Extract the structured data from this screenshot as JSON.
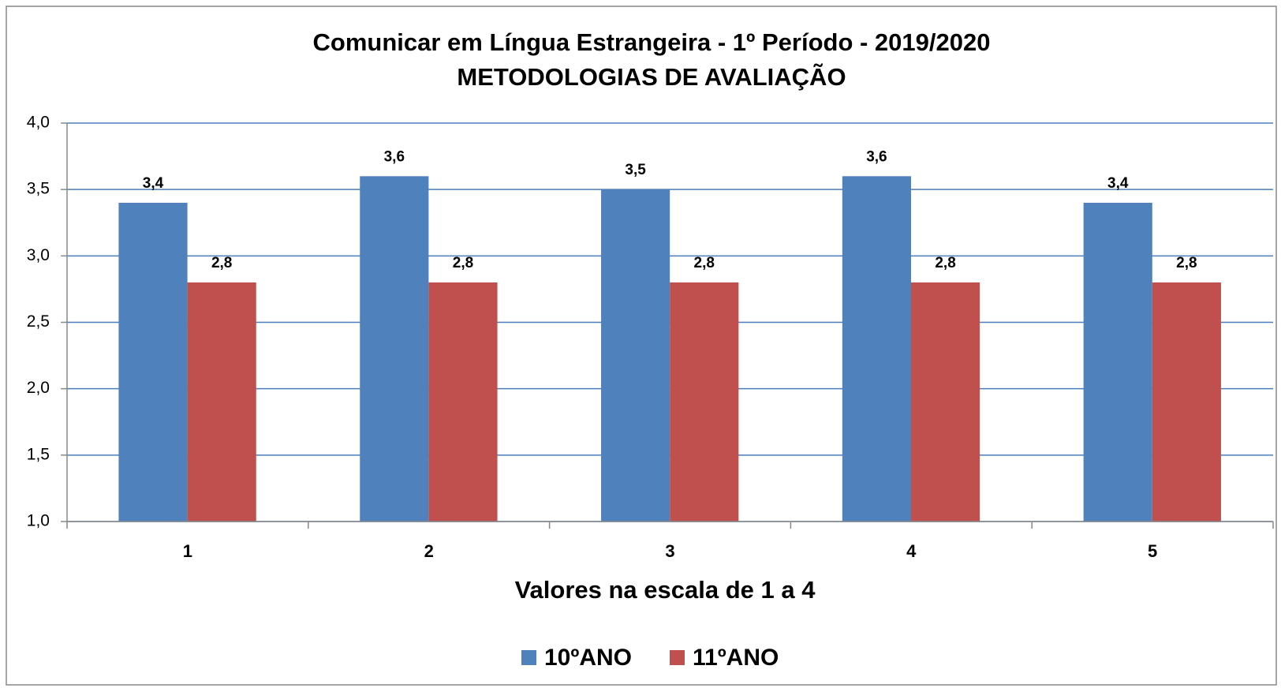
{
  "chart_data": {
    "type": "bar",
    "title": "Comunicar em Língua Estrangeira - 1º Período - 2019/2020",
    "subtitle": "METODOLOGIAS DE AVALIAÇÃO",
    "x_label": "Valores na escala de 1 a 4",
    "categories": [
      "1",
      "2",
      "3",
      "4",
      "5"
    ],
    "series": [
      {
        "name": "10ºANO",
        "color": "#4f81bd",
        "values": [
          3.4,
          3.6,
          3.5,
          3.6,
          3.4
        ],
        "value_labels": [
          "3,4",
          "3,6",
          "3,5",
          "3,6",
          "3,4"
        ]
      },
      {
        "name": "11ºANO",
        "color": "#c0504d",
        "values": [
          2.8,
          2.8,
          2.8,
          2.8,
          2.8
        ],
        "value_labels": [
          "2,8",
          "2,8",
          "2,8",
          "2,8",
          "2,8"
        ]
      }
    ],
    "ylim": [
      1,
      4
    ],
    "yticks": [
      {
        "value": 1,
        "label": "1,0"
      },
      {
        "value": 1.5,
        "label": "1,5"
      },
      {
        "value": 2,
        "label": "2,0"
      },
      {
        "value": 2.5,
        "label": "2,5"
      },
      {
        "value": 3,
        "label": "3,0"
      },
      {
        "value": 3.5,
        "label": "3,5"
      },
      {
        "value": 4,
        "label": "4,0"
      }
    ],
    "grid": true,
    "legend": "bottom"
  }
}
